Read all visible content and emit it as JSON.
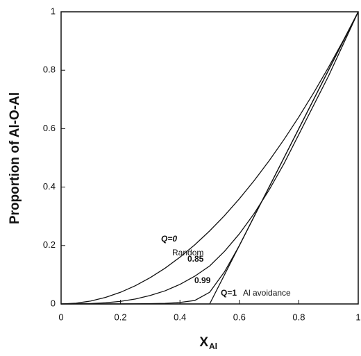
{
  "chart_data": {
    "type": "line",
    "ylabel": "Proportion of Al-O-Al",
    "xlabel": "X",
    "xlabel_subscript": "Al",
    "x": [
      0,
      0.05,
      0.1,
      0.15,
      0.2,
      0.25,
      0.3,
      0.35,
      0.4,
      0.45,
      0.5,
      0.55,
      0.6,
      0.65,
      0.7,
      0.75,
      0.8,
      0.85,
      0.9,
      0.95,
      1
    ],
    "series": [
      {
        "name": "Q=0",
        "color": "#111111",
        "values": [
          0,
          0.0025,
          0.01,
          0.0225,
          0.04,
          0.0625,
          0.09,
          0.1225,
          0.16,
          0.2025,
          0.25,
          0.3025,
          0.36,
          0.4225,
          0.49,
          0.5625,
          0.64,
          0.7225,
          0.81,
          0.9025,
          1
        ]
      },
      {
        "name": "0.85",
        "color": "#111111",
        "values": [
          0,
          0.0003,
          0.0015,
          0.004,
          0.009,
          0.017,
          0.029,
          0.045,
          0.067,
          0.095,
          0.13,
          0.18,
          0.24,
          0.31,
          0.39,
          0.48,
          0.58,
          0.68,
          0.78,
          0.89,
          1
        ]
      },
      {
        "name": "0.99",
        "color": "#111111",
        "values": [
          0,
          0,
          0,
          0,
          0.0002,
          0.0005,
          0.001,
          0.002,
          0.005,
          0.012,
          0.04,
          0.11,
          0.2,
          0.3,
          0.4,
          0.5,
          0.6,
          0.7,
          0.8,
          0.9,
          1
        ]
      },
      {
        "name": "Q=1",
        "color": "#111111",
        "values": [
          0,
          0,
          0,
          0,
          0,
          0,
          0,
          0,
          0,
          0,
          0,
          0.1,
          0.2,
          0.3,
          0.4,
          0.5,
          0.6,
          0.7,
          0.8,
          0.9,
          1
        ]
      }
    ],
    "annotations": [
      "Random",
      "Al avoidance"
    ],
    "xlim": [
      0,
      1
    ],
    "ylim": [
      0,
      1
    ],
    "xticks": [
      0,
      0.2,
      0.4,
      0.6,
      0.8,
      1
    ],
    "yticks": [
      0,
      0.2,
      0.4,
      0.6,
      0.8,
      1
    ],
    "grid": false
  }
}
